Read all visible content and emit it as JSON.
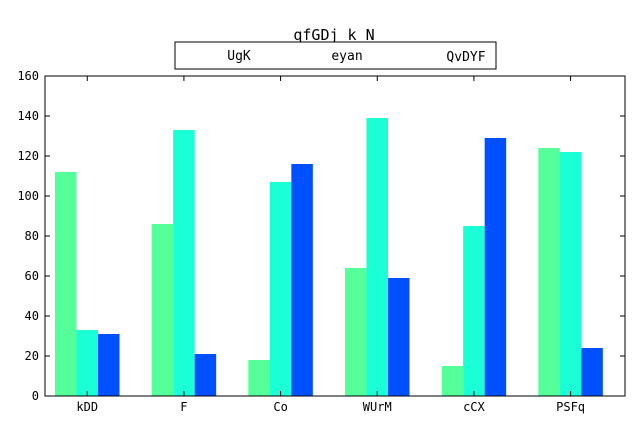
{
  "chart_data": {
    "type": "bar",
    "title": "qfGDj k N",
    "xlabel": "",
    "ylabel": "",
    "categories": [
      "kDD",
      "F",
      "Co",
      "WUrM",
      "cCX",
      "PSFq"
    ],
    "series": [
      {
        "name": "UgK",
        "color": "#55ff99",
        "values": [
          112,
          86,
          18,
          64,
          15,
          124
        ]
      },
      {
        "name": "eyan",
        "color": "#1affd5",
        "values": [
          33,
          133,
          107,
          139,
          85,
          122
        ]
      },
      {
        "name": "QvDYF",
        "color": "#0050ff",
        "values": [
          31,
          21,
          116,
          59,
          129,
          24
        ]
      }
    ],
    "ylim": [
      0,
      160
    ],
    "yticks": [
      0,
      20,
      40,
      60,
      80,
      100,
      120,
      140,
      160
    ],
    "grid": false,
    "legend_position": "top-center"
  }
}
